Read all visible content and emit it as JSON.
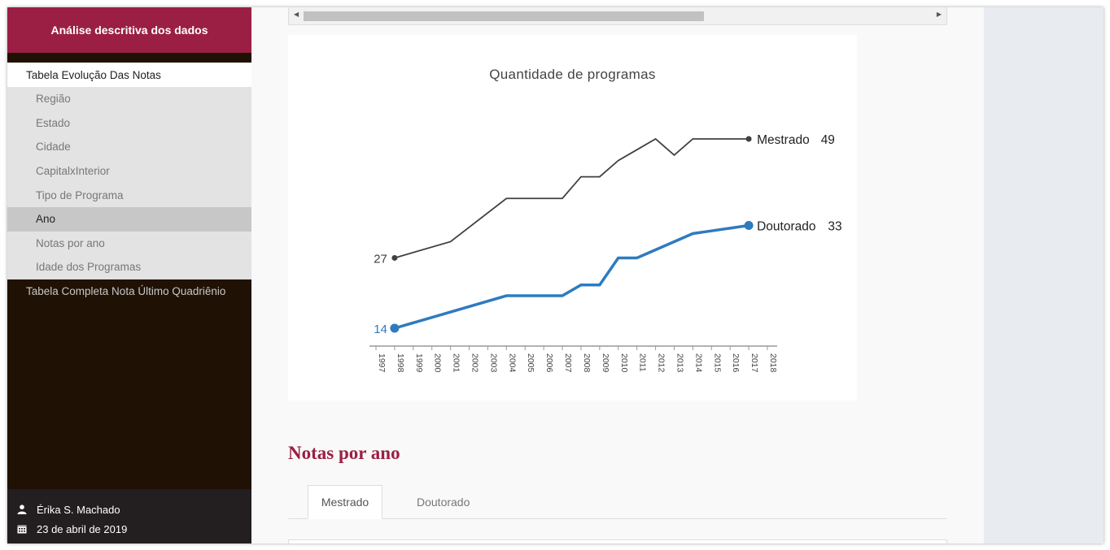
{
  "sidebar": {
    "title": "Análise descritiva dos dados",
    "active_group": "Tabela Evolução Das Notas",
    "sub_items": [
      {
        "label": "Região"
      },
      {
        "label": "Estado"
      },
      {
        "label": "Cidade"
      },
      {
        "label": "CapitalxInterior"
      },
      {
        "label": "Tipo de Programa"
      },
      {
        "label": "Ano"
      },
      {
        "label": "Notas por ano"
      },
      {
        "label": "Idade dos Programas"
      }
    ],
    "selected_sub_item": "Ano",
    "group2": "Tabela Completa Nota Último Quadriênio",
    "footer": {
      "author": "Érika S. Machado",
      "date": "23 de abril de 2019"
    }
  },
  "colors": {
    "brand": "#9b1f45",
    "mestrado": "#404040",
    "doutorado": "#2e7bbf"
  },
  "chart_data": {
    "type": "line",
    "title": "Quantidade de programas",
    "x": [
      1997,
      1998,
      1999,
      2000,
      2001,
      2002,
      2003,
      2004,
      2005,
      2006,
      2007,
      2008,
      2009,
      2010,
      2011,
      2012,
      2013,
      2014,
      2015,
      2016,
      2017,
      2018
    ],
    "xlim": [
      1997,
      2018
    ],
    "ylim": [
      14,
      49
    ],
    "grid": false,
    "series": [
      {
        "name": "Mestrado",
        "x": [
          1998,
          2001,
          2004,
          2007,
          2008,
          2009,
          2010,
          2011,
          2012,
          2013,
          2014,
          2015,
          2016,
          2017
        ],
        "values": [
          27,
          30,
          38,
          38,
          42,
          42,
          45,
          47,
          49,
          46,
          49,
          49,
          49,
          49
        ],
        "start_label": "27",
        "end_label": "49",
        "color": "#404040"
      },
      {
        "name": "Doutorado",
        "x": [
          1998,
          2001,
          2004,
          2007,
          2008,
          2009,
          2010,
          2011,
          2012,
          2013,
          2014,
          2015,
          2016,
          2017
        ],
        "values": [
          14,
          17,
          20,
          20,
          22,
          22,
          27,
          27,
          28.5,
          30,
          31.5,
          32,
          32.5,
          33
        ],
        "start_label": "14",
        "end_label": "33",
        "color": "#2e7bbf"
      }
    ]
  },
  "section": {
    "title": "Notas por ano",
    "tabs": [
      {
        "label": "Mestrado",
        "active": true
      },
      {
        "label": "Doutorado",
        "active": false
      }
    ]
  }
}
